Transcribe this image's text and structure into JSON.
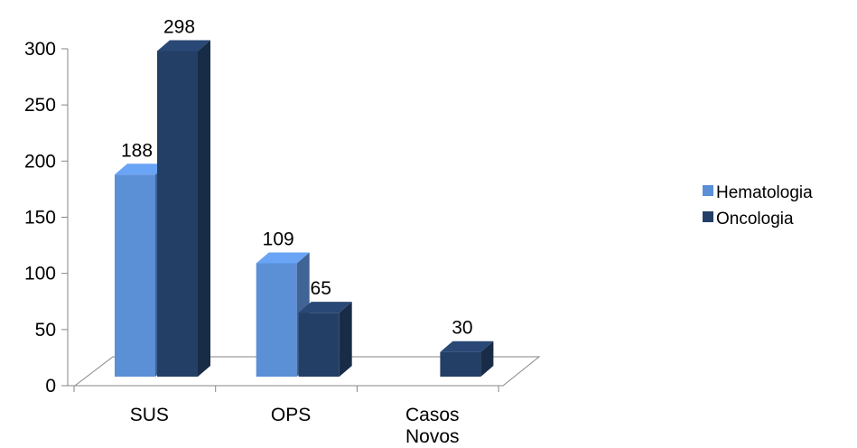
{
  "chart_data": {
    "type": "bar",
    "categories": [
      "SUS",
      "OPS",
      "Casos Novos"
    ],
    "series": [
      {
        "name": "Hematologia",
        "values": [
          188,
          109,
          null
        ],
        "color": "#5B8FD6"
      },
      {
        "name": "Oncologia",
        "values": [
          298,
          65,
          30
        ],
        "color": "#243F66"
      }
    ],
    "data_labels": [
      [
        "188",
        "109",
        ""
      ],
      [
        "298",
        "65",
        "30"
      ]
    ],
    "ylim": [
      0,
      300
    ],
    "yticks": [
      0,
      50,
      100,
      150,
      200,
      250,
      300
    ],
    "ytick_labels": [
      "0",
      "50",
      "100",
      "150",
      "200",
      "250",
      "300"
    ],
    "category_labels": [
      [
        "SUS"
      ],
      [
        "OPS"
      ],
      [
        "Casos",
        "Novos"
      ]
    ],
    "style": "3d-clustered-column",
    "legend": "right",
    "grid": false,
    "title": "",
    "xlabel": "",
    "ylabel": ""
  }
}
